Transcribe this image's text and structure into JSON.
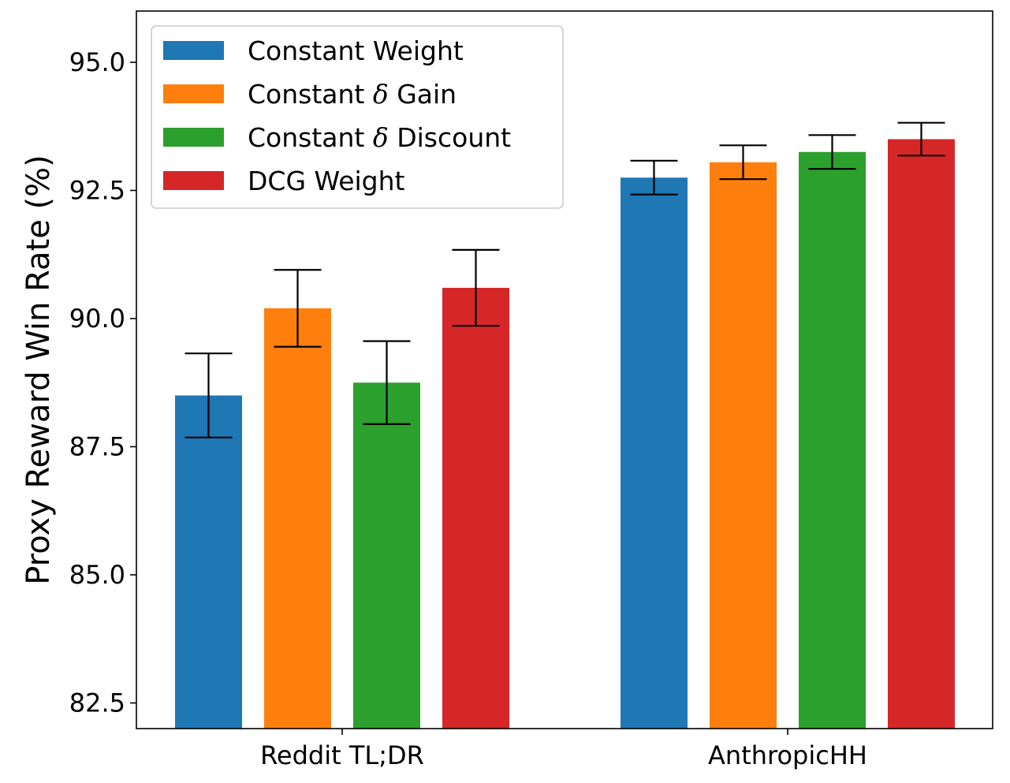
{
  "chart_data": {
    "type": "bar",
    "title": "",
    "xlabel": "",
    "ylabel": "Proxy Reward Win Rate (%)",
    "ylim": [
      82.0,
      96.0
    ],
    "yticks": [
      82.5,
      85.0,
      87.5,
      90.0,
      92.5,
      95.0
    ],
    "ytick_labels": [
      "82.5",
      "85.0",
      "87.5",
      "90.0",
      "92.5",
      "95.0"
    ],
    "categories": [
      "Reddit TL;DR",
      "AnthropicHH"
    ],
    "legend_position": "top-left",
    "grid": false,
    "series": [
      {
        "name": "Constant Weight",
        "legend_prefix": "Constant Weight",
        "legend_symbol": "",
        "legend_suffix": "",
        "color": "#1f77b4",
        "values": [
          88.5,
          92.75
        ],
        "errors": [
          0.82,
          0.33
        ]
      },
      {
        "name": "Constant δ Gain",
        "legend_prefix": "Constant ",
        "legend_symbol": "δ",
        "legend_suffix": " Gain",
        "color": "#ff7f0e",
        "values": [
          90.2,
          93.05
        ],
        "errors": [
          0.75,
          0.33
        ]
      },
      {
        "name": "Constant δ Discount",
        "legend_prefix": "Constant ",
        "legend_symbol": "δ",
        "legend_suffix": " Discount",
        "color": "#2ca02c",
        "values": [
          88.75,
          93.25
        ],
        "errors": [
          0.81,
          0.33
        ]
      },
      {
        "name": "DCG Weight",
        "legend_prefix": "DCG Weight",
        "legend_symbol": "",
        "legend_suffix": "",
        "color": "#d62728",
        "values": [
          90.6,
          93.5
        ],
        "errors": [
          0.74,
          0.32
        ]
      }
    ]
  }
}
